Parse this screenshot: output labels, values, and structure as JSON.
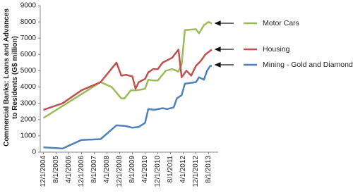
{
  "chart_data": {
    "type": "line",
    "ylabel": "Commercial Banks: Loans and Advances to Residents (G$ million)",
    "xlim": [
      "10/1/2004",
      "2/1/2014"
    ],
    "xticks": [
      "12/1/2004",
      "8/1/2005",
      "4/1/2006",
      "12/1/2006",
      "8/1/2007",
      "4/1/2008",
      "12/1/2008",
      "8/1/2009",
      "4/1/2010",
      "12/1/2010",
      "8/1/2011",
      "4/1/2012",
      "12/1/2012",
      "8/1/2013"
    ],
    "ylim": [
      0,
      9000
    ],
    "yticks": [
      0,
      1000,
      2000,
      3000,
      4000,
      5000,
      6000,
      7000,
      8000,
      9000
    ],
    "grid": false,
    "series": [
      {
        "name": "Motor Cars",
        "color": "#9bbb59",
        "x": [
          "12/1/2004",
          "12/1/2007",
          "7/1/2008",
          "1/1/2009",
          "3/1/2009",
          "7/1/2009",
          "10/1/2009",
          "2/1/2010",
          "4/1/2010",
          "6/1/2010",
          "9/1/2010",
          "12/1/2010",
          "5/1/2011",
          "9/1/2011",
          "1/1/2012",
          "3/1/2012",
          "5/1/2012",
          "12/1/2012",
          "2/1/2013",
          "5/1/2013",
          "8/1/2013",
          "10/1/2013"
        ],
        "values": [
          2100,
          4300,
          4000,
          3300,
          3300,
          3800,
          3800,
          3850,
          3900,
          4450,
          4400,
          4400,
          5000,
          5100,
          4950,
          5400,
          7500,
          7550,
          7300,
          7800,
          8000,
          7900
        ]
      },
      {
        "name": "Housing",
        "color": "#c0504d",
        "x": [
          "12/1/2004",
          "12/1/2005",
          "12/1/2006",
          "12/1/2007",
          "10/1/2008",
          "1/1/2009",
          "4/1/2009",
          "8/1/2009",
          "10/1/2009",
          "12/1/2009",
          "4/1/2010",
          "6/1/2010",
          "9/1/2010",
          "12/1/2010",
          "3/1/2011",
          "9/1/2011",
          "1/1/2012",
          "3/1/2012",
          "6/1/2012",
          "9/1/2012",
          "12/1/2012",
          "3/1/2013",
          "6/1/2013",
          "10/1/2013"
        ],
        "values": [
          2600,
          3000,
          3800,
          4300,
          5500,
          4700,
          4750,
          4650,
          3900,
          4300,
          4500,
          4900,
          5100,
          5100,
          5500,
          5800,
          6300,
          4600,
          5000,
          4700,
          5300,
          5600,
          6000,
          6300
        ]
      },
      {
        "name": "Mining - Gold and Diamonds",
        "color": "#4f81bd",
        "x": [
          "12/1/2004",
          "12/1/2005",
          "12/1/2006",
          "12/1/2007",
          "10/1/2008",
          "4/1/2009",
          "8/1/2009",
          "12/1/2009",
          "4/1/2010",
          "6/1/2010",
          "10/1/2010",
          "3/1/2011",
          "6/1/2011",
          "10/1/2011",
          "12/1/2011",
          "3/1/2012",
          "5/1/2012",
          "12/1/2012",
          "2/1/2013",
          "5/1/2013",
          "7/1/2013",
          "9/1/2013",
          "10/1/2013"
        ],
        "values": [
          300,
          220,
          750,
          800,
          1650,
          1600,
          1500,
          1550,
          1800,
          2650,
          2600,
          2700,
          2650,
          2750,
          3300,
          3500,
          4200,
          4300,
          4600,
          4450,
          5000,
          5300,
          5300
        ]
      }
    ]
  }
}
